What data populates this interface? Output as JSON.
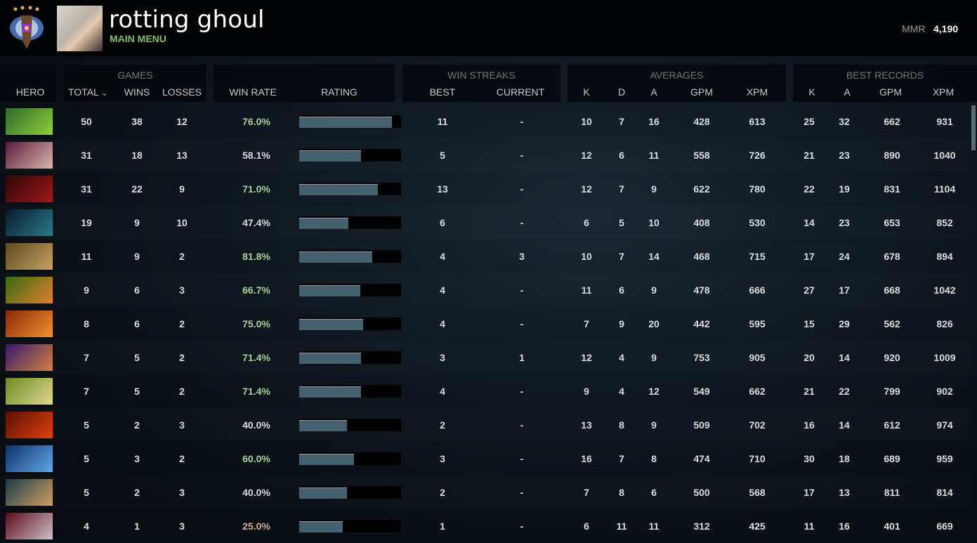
{
  "header": {
    "username": "rotting ghoul",
    "subtitle": "MAIN MENU",
    "mmr_label": "MMR",
    "mmr_value": "4,190",
    "rank_icon": "immortal-rank-medal-icon"
  },
  "columns": {
    "hero": "HERO",
    "games": "GAMES",
    "total": "TOTAL",
    "sort_icon": "chevron-down-icon",
    "sort_glyph": "⌄",
    "wins": "WINS",
    "losses": "LOSSES",
    "win_rate": "WIN RATE",
    "rating": "RATING",
    "win_streaks": "WIN STREAKS",
    "best": "BEST",
    "current": "CURRENT",
    "averages": "AVERAGES",
    "k": "K",
    "d": "D",
    "a": "A",
    "gpm": "GPM",
    "xpm": "XPM",
    "best_records": "BEST RECORDS"
  },
  "colors": {
    "win_rate_high": "#a6d49a",
    "win_rate_mid": "#dddddd",
    "win_rate_low": "#d8aaa4",
    "bar_fill": "#44606f",
    "username": "#ffffff",
    "subtitle": "#7fbf6a"
  },
  "rows": [
    {
      "total": "50",
      "wins": "38",
      "losses": "12",
      "win_rate": "76.0%",
      "tier": "high",
      "rating": 0.91,
      "best": "11",
      "current": "-",
      "k": "10",
      "d": "7",
      "a": "16",
      "gpm": "428",
      "xpm": "613",
      "bk": "25",
      "ba": "32",
      "bgpm": "662",
      "bxpm": "931",
      "hero_color": [
        "#2f6a2a",
        "#8fcf3a"
      ]
    },
    {
      "total": "31",
      "wins": "18",
      "losses": "13",
      "win_rate": "58.1%",
      "tier": "mid",
      "rating": 0.61,
      "best": "5",
      "current": "-",
      "k": "12",
      "d": "6",
      "a": "11",
      "gpm": "558",
      "xpm": "726",
      "bk": "21",
      "ba": "23",
      "bgpm": "890",
      "bxpm": "1040",
      "hero_color": [
        "#5a1a3a",
        "#d8b8b0"
      ]
    },
    {
      "total": "31",
      "wins": "22",
      "losses": "9",
      "win_rate": "71.0%",
      "tier": "high",
      "rating": 0.77,
      "best": "13",
      "current": "-",
      "k": "12",
      "d": "7",
      "a": "9",
      "gpm": "622",
      "xpm": "780",
      "bk": "22",
      "ba": "19",
      "bgpm": "831",
      "bxpm": "1104",
      "hero_color": [
        "#2a0808",
        "#a01818"
      ]
    },
    {
      "total": "19",
      "wins": "9",
      "losses": "10",
      "win_rate": "47.4%",
      "tier": "mid",
      "rating": 0.48,
      "best": "6",
      "current": "-",
      "k": "6",
      "d": "5",
      "a": "10",
      "gpm": "408",
      "xpm": "530",
      "bk": "14",
      "ba": "23",
      "bgpm": "653",
      "bxpm": "852",
      "hero_color": [
        "#0a1a2a",
        "#2a7a8a"
      ]
    },
    {
      "total": "11",
      "wins": "9",
      "losses": "2",
      "win_rate": "81.8%",
      "tier": "high",
      "rating": 0.72,
      "best": "4",
      "current": "3",
      "k": "10",
      "d": "7",
      "a": "14",
      "gpm": "468",
      "xpm": "715",
      "bk": "17",
      "ba": "24",
      "bgpm": "678",
      "bxpm": "894",
      "hero_color": [
        "#5a4a20",
        "#c8a060"
      ]
    },
    {
      "total": "9",
      "wins": "6",
      "losses": "3",
      "win_rate": "66.7%",
      "tier": "high",
      "rating": 0.6,
      "best": "4",
      "current": "-",
      "k": "11",
      "d": "6",
      "a": "9",
      "gpm": "478",
      "xpm": "666",
      "bk": "27",
      "ba": "17",
      "bgpm": "668",
      "bxpm": "1042",
      "hero_color": [
        "#3a6a10",
        "#e08030"
      ]
    },
    {
      "total": "8",
      "wins": "6",
      "losses": "2",
      "win_rate": "75.0%",
      "tier": "high",
      "rating": 0.63,
      "best": "4",
      "current": "-",
      "k": "7",
      "d": "9",
      "a": "20",
      "gpm": "442",
      "xpm": "595",
      "bk": "15",
      "ba": "29",
      "bgpm": "562",
      "bxpm": "826",
      "hero_color": [
        "#8a2a08",
        "#f09030"
      ]
    },
    {
      "total": "7",
      "wins": "5",
      "losses": "2",
      "win_rate": "71.4%",
      "tier": "high",
      "rating": 0.61,
      "best": "3",
      "current": "1",
      "k": "12",
      "d": "4",
      "a": "9",
      "gpm": "753",
      "xpm": "905",
      "bk": "20",
      "ba": "14",
      "bgpm": "920",
      "bxpm": "1009",
      "hero_color": [
        "#3a1a6a",
        "#d08040"
      ]
    },
    {
      "total": "7",
      "wins": "5",
      "losses": "2",
      "win_rate": "71.4%",
      "tier": "high",
      "rating": 0.61,
      "best": "4",
      "current": "-",
      "k": "9",
      "d": "4",
      "a": "12",
      "gpm": "549",
      "xpm": "662",
      "bk": "21",
      "ba": "22",
      "bgpm": "799",
      "bxpm": "902",
      "hero_color": [
        "#6a8a20",
        "#e0d890"
      ]
    },
    {
      "total": "5",
      "wins": "2",
      "losses": "3",
      "win_rate": "40.0%",
      "tier": "mid",
      "rating": 0.47,
      "best": "2",
      "current": "-",
      "k": "13",
      "d": "8",
      "a": "9",
      "gpm": "509",
      "xpm": "702",
      "bk": "16",
      "ba": "14",
      "bgpm": "612",
      "bxpm": "974",
      "hero_color": [
        "#5a1008",
        "#e04010"
      ]
    },
    {
      "total": "5",
      "wins": "3",
      "losses": "2",
      "win_rate": "60.0%",
      "tier": "high",
      "rating": 0.54,
      "best": "3",
      "current": "-",
      "k": "16",
      "d": "7",
      "a": "8",
      "gpm": "474",
      "xpm": "710",
      "bk": "30",
      "ba": "18",
      "bgpm": "689",
      "bxpm": "959",
      "hero_color": [
        "#10306a",
        "#60a8e8"
      ]
    },
    {
      "total": "5",
      "wins": "2",
      "losses": "3",
      "win_rate": "40.0%",
      "tier": "mid",
      "rating": 0.47,
      "best": "2",
      "current": "-",
      "k": "7",
      "d": "8",
      "a": "6",
      "gpm": "500",
      "xpm": "568",
      "bk": "17",
      "ba": "13",
      "bgpm": "811",
      "bxpm": "814",
      "hero_color": [
        "#1a3a4a",
        "#d0a060"
      ]
    },
    {
      "total": "4",
      "wins": "1",
      "losses": "3",
      "win_rate": "25.0%",
      "tier": "low",
      "rating": 0.43,
      "best": "1",
      "current": "-",
      "k": "6",
      "d": "11",
      "a": "11",
      "gpm": "312",
      "xpm": "425",
      "bk": "11",
      "ba": "16",
      "bgpm": "401",
      "bxpm": "669",
      "hero_color": [
        "#5a0a1a",
        "#d0c0c8"
      ]
    }
  ]
}
